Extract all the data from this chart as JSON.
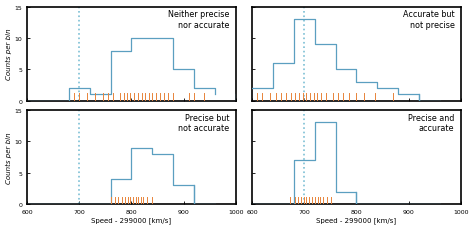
{
  "titles": [
    "Neither precise\nnor accurate",
    "Accurate but\nnot precise",
    "Precise but\nnot accurate",
    "Precise and\naccurate"
  ],
  "xlabel": "Speed - 299000 [km/s]",
  "ylabel": "Counts per bin",
  "xlim": [
    600,
    1000
  ],
  "ylim": [
    -1,
    15
  ],
  "yticks": [
    0,
    5,
    10,
    15
  ],
  "xticks": [
    600,
    700,
    800,
    900,
    1000
  ],
  "true_value": 700,
  "hist_color": "#5b9fc0",
  "tick_color": "#e8843a",
  "vline_color": "#7bbfd4",
  "background": "#ffffff",
  "bin_edges": [
    620,
    660,
    700,
    740,
    780,
    820,
    860,
    900,
    940,
    980
  ],
  "hist_counts": [
    [
      0,
      2,
      1,
      8,
      10,
      10,
      5,
      2,
      1,
      0
    ],
    [
      2,
      6,
      13,
      9,
      5,
      3,
      1,
      0,
      0,
      0
    ],
    [
      0,
      0,
      0,
      0,
      4,
      9,
      8,
      3,
      0,
      0
    ],
    [
      0,
      0,
      7,
      13,
      2,
      0,
      0,
      0,
      0,
      0
    ]
  ],
  "tick_positions": [
    [
      700,
      710,
      720,
      730,
      740,
      750,
      760,
      770,
      780,
      790,
      800,
      810,
      820,
      830,
      840,
      850,
      860,
      870,
      880,
      900,
      920,
      940,
      960
    ],
    [
      615,
      625,
      635,
      645,
      655,
      665,
      675,
      685,
      695,
      700,
      710,
      715,
      720,
      730,
      740,
      750,
      760,
      770,
      780,
      790,
      800,
      820,
      870
    ],
    [
      760,
      770,
      780,
      790,
      795,
      800,
      805,
      810,
      815,
      820,
      825,
      830,
      840,
      850
    ],
    [
      675,
      685,
      690,
      695,
      700,
      705,
      710,
      715,
      720,
      725,
      730,
      735,
      740,
      750
    ]
  ]
}
